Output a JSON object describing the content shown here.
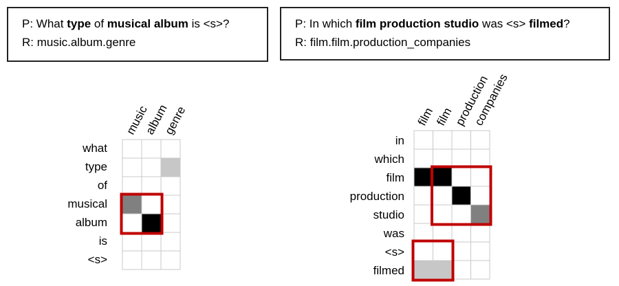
{
  "examples": [
    {
      "pattern": {
        "prefix": "P: ",
        "segments": [
          {
            "text": "What ",
            "bold": false
          },
          {
            "text": "type",
            "bold": true
          },
          {
            "text": " of ",
            "bold": false
          },
          {
            "text": "musical album",
            "bold": true
          },
          {
            "text": " is <s>?",
            "bold": false
          }
        ]
      },
      "relation": "R: music.album.genre",
      "matrix": {
        "columns": [
          "music",
          "album",
          "genre"
        ],
        "rows": [
          "what",
          "type",
          "of",
          "musical",
          "album",
          "is",
          "<s>"
        ],
        "weights": [
          [
            0,
            0,
            0
          ],
          [
            0,
            0,
            0.22
          ],
          [
            0,
            0,
            0
          ],
          [
            0.5,
            0,
            0
          ],
          [
            0,
            1,
            0
          ],
          [
            0,
            0,
            0
          ],
          [
            0,
            0,
            0
          ]
        ],
        "highlights": [
          {
            "rows": [
              3,
              4
            ],
            "cols": [
              0,
              1
            ]
          }
        ]
      }
    },
    {
      "pattern": {
        "prefix": "P: ",
        "segments": [
          {
            "text": "In which ",
            "bold": false
          },
          {
            "text": "film production studio",
            "bold": true
          },
          {
            "text": " was <s> ",
            "bold": false
          },
          {
            "text": "filmed",
            "bold": true
          },
          {
            "text": "?",
            "bold": false
          }
        ]
      },
      "relation": "R: film.film.production_companies",
      "matrix": {
        "columns": [
          "film",
          "film",
          "production",
          "companies"
        ],
        "rows": [
          "in",
          "which",
          "film",
          "production",
          "studio",
          "was",
          "<s>",
          "filmed"
        ],
        "weights": [
          [
            0,
            0,
            0,
            0
          ],
          [
            0,
            0,
            0,
            0
          ],
          [
            1,
            1,
            0,
            0
          ],
          [
            0,
            0,
            1,
            0
          ],
          [
            0,
            0,
            0,
            0.5
          ],
          [
            0,
            0,
            0,
            0
          ],
          [
            0,
            0,
            0,
            0
          ],
          [
            0.22,
            0.22,
            0,
            0
          ]
        ],
        "highlights": [
          {
            "rows": [
              2,
              4
            ],
            "cols": [
              1,
              3
            ]
          },
          {
            "rows": [
              6,
              7
            ],
            "cols": [
              0,
              1
            ]
          }
        ]
      }
    }
  ],
  "colors": {
    "grid": "#c8c8c8",
    "cell_empty": "#ffffff",
    "cell_full": "#000000",
    "highlight": "#c00000",
    "box_border": "#222222"
  }
}
